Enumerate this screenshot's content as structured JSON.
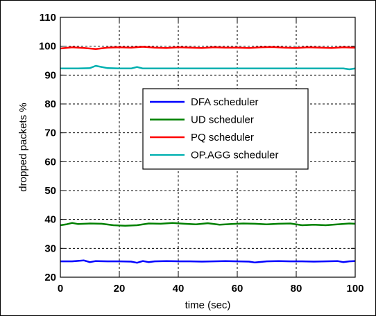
{
  "chart_data": {
    "type": "line",
    "title": "",
    "xlabel": "time (sec)",
    "ylabel": "dropped packets %",
    "xlim": [
      0,
      100
    ],
    "ylim": [
      20,
      110
    ],
    "xticks": [
      0,
      20,
      40,
      60,
      80,
      100
    ],
    "yticks": [
      20,
      30,
      40,
      50,
      60,
      70,
      80,
      90,
      100,
      110
    ],
    "grid": true,
    "legend_position": "center",
    "series": [
      {
        "name": "DFA scheduler",
        "color": "#0000ff",
        "x": [
          0,
          4,
          8,
          10,
          12,
          16,
          20,
          24,
          26,
          28,
          30,
          32,
          36,
          40,
          44,
          48,
          52,
          56,
          60,
          64,
          66,
          70,
          74,
          78,
          82,
          86,
          90,
          94,
          96,
          98,
          100
        ],
        "y": [
          25.5,
          25.5,
          25.8,
          25.2,
          25.6,
          25.5,
          25.5,
          25.4,
          25.0,
          25.6,
          25.2,
          25.5,
          25.6,
          25.5,
          25.5,
          25.4,
          25.5,
          25.6,
          25.5,
          25.4,
          25.1,
          25.5,
          25.6,
          25.5,
          25.5,
          25.4,
          25.5,
          25.6,
          25.2,
          25.5,
          25.6
        ]
      },
      {
        "name": "UD scheduler",
        "color": "#008000",
        "x": [
          0,
          2,
          4,
          6,
          10,
          14,
          18,
          22,
          26,
          30,
          34,
          38,
          42,
          46,
          50,
          54,
          58,
          62,
          66,
          70,
          74,
          78,
          82,
          86,
          90,
          94,
          98,
          100
        ],
        "y": [
          38.0,
          38.3,
          38.8,
          38.4,
          38.6,
          38.5,
          38.0,
          37.8,
          38.0,
          38.6,
          38.5,
          38.8,
          38.5,
          38.3,
          38.7,
          38.2,
          38.4,
          38.6,
          38.5,
          38.3,
          38.5,
          38.6,
          38.0,
          38.2,
          38.0,
          38.3,
          38.6,
          38.5
        ]
      },
      {
        "name": "PQ scheduler",
        "color": "#ff0000",
        "x": [
          0,
          4,
          8,
          12,
          16,
          20,
          24,
          28,
          32,
          36,
          40,
          44,
          48,
          52,
          56,
          60,
          64,
          68,
          72,
          76,
          80,
          84,
          88,
          92,
          96,
          100
        ],
        "y": [
          99.2,
          99.6,
          99.4,
          99.0,
          99.5,
          99.6,
          99.5,
          99.8,
          99.5,
          99.4,
          99.6,
          99.5,
          99.4,
          99.6,
          99.5,
          99.5,
          99.4,
          99.6,
          99.7,
          99.5,
          99.4,
          99.6,
          99.5,
          99.4,
          99.6,
          99.5
        ]
      },
      {
        "name": "OP.AGG scheduler",
        "color": "#00b0b0",
        "x": [
          0,
          6,
          10,
          12,
          16,
          20,
          24,
          26,
          28,
          30,
          36,
          42,
          50,
          58,
          66,
          74,
          82,
          90,
          96,
          98,
          100
        ],
        "y": [
          92.3,
          92.3,
          92.4,
          93.2,
          92.4,
          92.3,
          92.3,
          92.8,
          92.3,
          92.3,
          92.3,
          92.3,
          92.3,
          92.3,
          92.3,
          92.3,
          92.3,
          92.3,
          92.3,
          92.0,
          92.3
        ]
      }
    ]
  }
}
